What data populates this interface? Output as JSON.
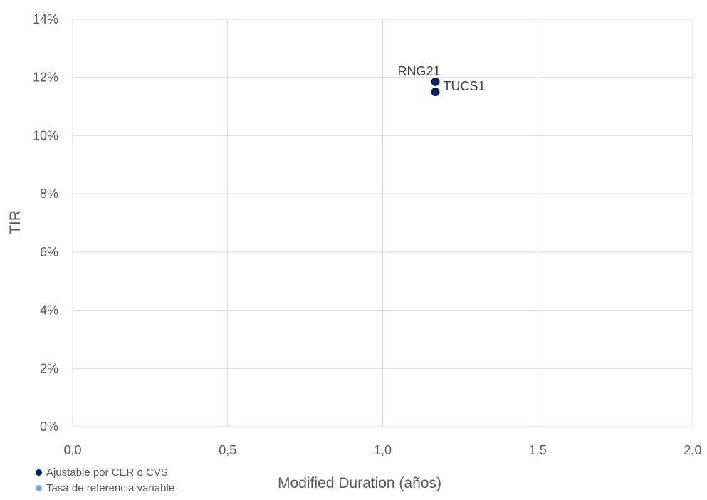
{
  "chart_data": {
    "type": "scatter",
    "xlabel": "Modified Duration (años)",
    "ylabel": "TIR",
    "xlim": [
      0,
      2
    ],
    "ylim": [
      0,
      0.14
    ],
    "x_ticks": [
      "0,0",
      "0,5",
      "1,0",
      "1,5",
      "2,0"
    ],
    "x_tick_values": [
      0,
      0.5,
      1.0,
      1.5,
      2.0
    ],
    "y_ticks": [
      "0%",
      "2%",
      "4%",
      "6%",
      "8%",
      "10%",
      "12%",
      "14%"
    ],
    "y_tick_values": [
      0,
      0.02,
      0.04,
      0.06,
      0.08,
      0.1,
      0.12,
      0.14
    ],
    "grid": true,
    "legend_position": "bottom-left",
    "series": [
      {
        "name": "Ajustable por CER o CVS",
        "color": "#002060",
        "points": [
          {
            "label": "RNG21",
            "x": 1.17,
            "y": 0.1185
          },
          {
            "label": "TUCS1",
            "x": 1.17,
            "y": 0.115
          }
        ]
      },
      {
        "name": "Tasa de referencia variable",
        "color": "#7fa8d8",
        "points": []
      }
    ]
  }
}
